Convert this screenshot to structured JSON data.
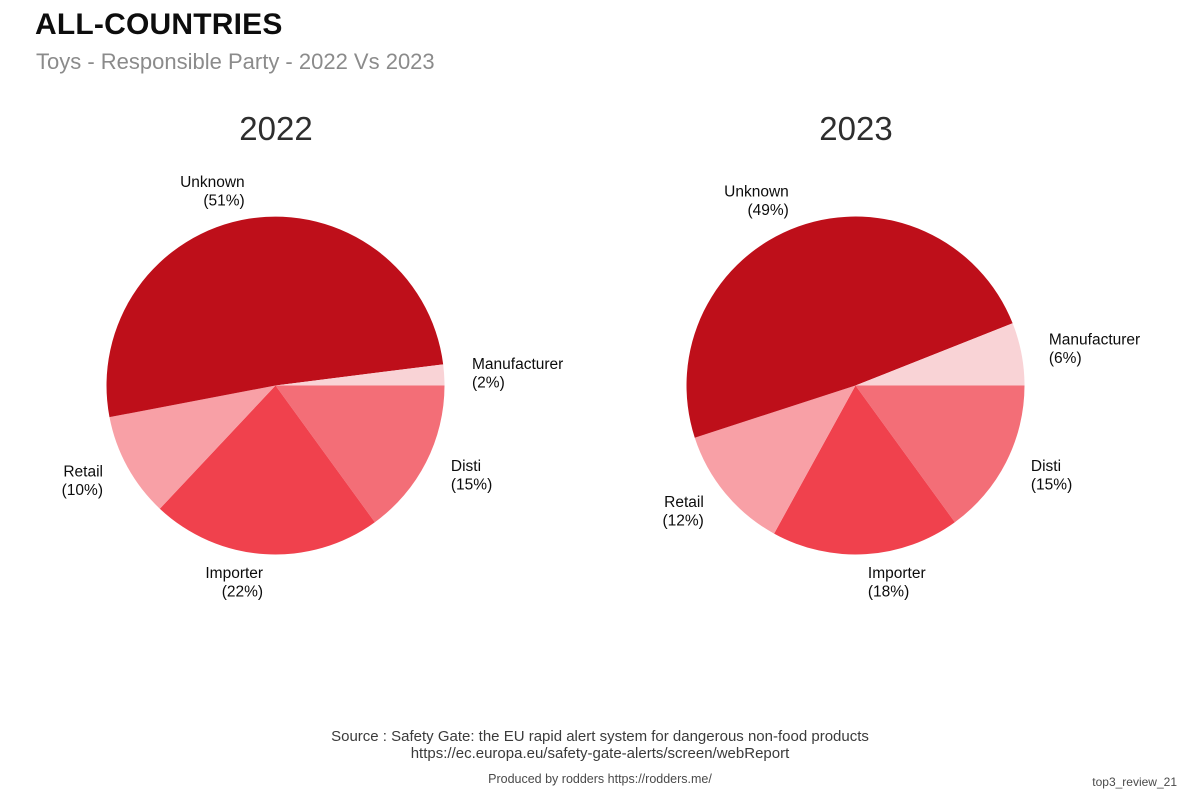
{
  "header": {
    "title": "ALL-COUNTRIES",
    "subtitle": "Toys - Responsible Party - 2022 Vs 2023"
  },
  "chart_data": [
    {
      "type": "pie",
      "title": "2022",
      "start_angle_deg": 0,
      "direction": "clockwise",
      "label_position": "outside",
      "legend": "none",
      "slices": [
        {
          "label": "Disti",
          "value": 15,
          "pct_label": "(15%)",
          "color": "#F36E77"
        },
        {
          "label": "Importer",
          "value": 22,
          "pct_label": "(22%)",
          "color": "#F0414D"
        },
        {
          "label": "Retail",
          "value": 10,
          "pct_label": "(10%)",
          "color": "#F8A0A6"
        },
        {
          "label": "Unknown",
          "value": 51,
          "pct_label": "(51%)",
          "color": "#BE0F1A"
        },
        {
          "label": "Manufacturer",
          "value": 2,
          "pct_label": "(2%)",
          "color": "#F9D3D6"
        }
      ]
    },
    {
      "type": "pie",
      "title": "2023",
      "start_angle_deg": 0,
      "direction": "clockwise",
      "label_position": "outside",
      "legend": "none",
      "slices": [
        {
          "label": "Disti",
          "value": 15,
          "pct_label": "(15%)",
          "color": "#F36E77"
        },
        {
          "label": "Importer",
          "value": 18,
          "pct_label": "(18%)",
          "color": "#F0414D"
        },
        {
          "label": "Retail",
          "value": 12,
          "pct_label": "(12%)",
          "color": "#F8A0A6"
        },
        {
          "label": "Unknown",
          "value": 49,
          "pct_label": "(49%)",
          "color": "#BE0F1A"
        },
        {
          "label": "Manufacturer",
          "value": 6,
          "pct_label": "(6%)",
          "color": "#F9D3D6"
        }
      ]
    }
  ],
  "footer": {
    "source_line1": "Source : Safety Gate: the EU rapid alert system for dangerous non-food products",
    "source_line2": "https://ec.europa.eu/safety-gate-alerts/screen/webReport",
    "credit": "Produced by rodders https://rodders.me/",
    "watermark": "top3_review_21"
  }
}
